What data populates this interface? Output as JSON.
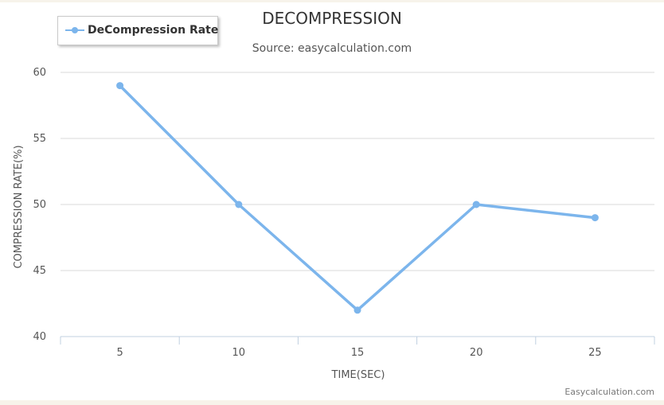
{
  "chart_data": {
    "type": "line",
    "title": "DECOMPRESSION",
    "subtitle": "Source: easycalculation.com",
    "xlabel": "TIME(SEC)",
    "ylabel": "COMPRESSION RATE(%)",
    "categories": [
      "5",
      "10",
      "15",
      "20",
      "25"
    ],
    "series": [
      {
        "name": "DeCompression Rate",
        "values": [
          59,
          50,
          42,
          50,
          49
        ]
      }
    ],
    "ylim": [
      40,
      60
    ],
    "yticks": [
      40,
      45,
      50,
      55,
      60
    ],
    "grid": true,
    "legend_position": "top-left",
    "color": "#7cb5ec"
  },
  "credit": "Easycalculation.com"
}
